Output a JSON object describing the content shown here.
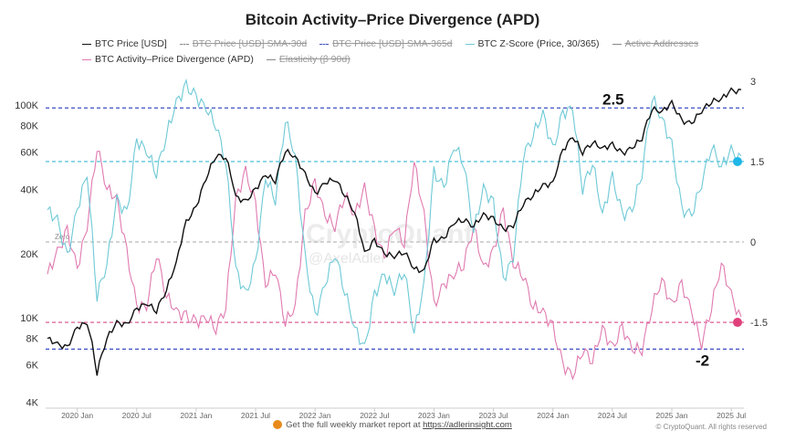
{
  "chart_data": {
    "type": "line",
    "title": "Bitcoin Activity–Price Divergence (APD)",
    "legend": [
      {
        "label": "BTC Price [USD]",
        "color": "#111111",
        "style": "solid",
        "enabled": true
      },
      {
        "label": "BTC Price [USD] SMA-30d",
        "color": "#888888",
        "style": "dash",
        "enabled": false
      },
      {
        "label": "BTC Price [USD] SMA-365d",
        "color": "#3b4fb5",
        "style": "dash",
        "enabled": false
      },
      {
        "label": "BTC Z-Score (Price, 30/365)",
        "color": "#6ec9d6",
        "style": "solid",
        "enabled": true
      },
      {
        "label": "Active Addresses",
        "color": "#888888",
        "style": "solid",
        "enabled": false
      },
      {
        "label": "BTC Activity–Price Divergence (APD)",
        "color": "#e07ab0",
        "style": "solid",
        "enabled": true
      },
      {
        "label": "Elasticity (β 90d)",
        "color": "#888888",
        "style": "solid",
        "enabled": false
      }
    ],
    "x_ticks": [
      "2020 Jan",
      "2020 Jul",
      "2021 Jan",
      "2021 Jul",
      "2022 Jan",
      "2022 Jul",
      "2023 Jan",
      "2023 Jul",
      "2024 Jan",
      "2024 Jul",
      "2025 Jan",
      "2025 Jul"
    ],
    "left_axis": {
      "scale": "log",
      "range": [
        4000,
        130000
      ],
      "ticks": [
        {
          "v": 4000,
          "l": "4K"
        },
        {
          "v": 6000,
          "l": "6K"
        },
        {
          "v": 8000,
          "l": "8K"
        },
        {
          "v": 10000,
          "l": "10K"
        },
        {
          "v": 20000,
          "l": "20K"
        },
        {
          "v": 40000,
          "l": "40K"
        },
        {
          "v": 60000,
          "l": "60K"
        },
        {
          "v": 80000,
          "l": "80K"
        },
        {
          "v": 100000,
          "l": "100K"
        }
      ]
    },
    "right_axis": {
      "range": [
        -2.95,
        3.05
      ],
      "ticks": [
        {
          "v": 3,
          "l": "3"
        },
        {
          "v": 1.5,
          "l": "1.5"
        },
        {
          "v": 0,
          "l": "0"
        },
        {
          "v": -1.5,
          "l": "-1.5"
        }
      ]
    },
    "reference_lines": [
      {
        "value": 2.5,
        "label": "2.5",
        "color": "#3b4fc4"
      },
      {
        "value": -2,
        "label": "-2",
        "color": "#3b4fc4"
      },
      {
        "value": 1.5,
        "label": "",
        "color": "#3bb8d8"
      },
      {
        "value": -1.5,
        "label": "",
        "color": "#d84a8a"
      },
      {
        "value": 0,
        "label": "Zero",
        "color": "#bbbbbb"
      }
    ],
    "x_months": [
      "2019-10",
      "2019-11",
      "2019-12",
      "2020-01",
      "2020-02",
      "2020-03",
      "2020-04",
      "2020-05",
      "2020-06",
      "2020-07",
      "2020-08",
      "2020-09",
      "2020-10",
      "2020-11",
      "2020-12",
      "2021-01",
      "2021-02",
      "2021-03",
      "2021-04",
      "2021-05",
      "2021-06",
      "2021-07",
      "2021-08",
      "2021-09",
      "2021-10",
      "2021-11",
      "2021-12",
      "2022-01",
      "2022-02",
      "2022-03",
      "2022-04",
      "2022-05",
      "2022-06",
      "2022-07",
      "2022-08",
      "2022-09",
      "2022-10",
      "2022-11",
      "2022-12",
      "2023-01",
      "2023-02",
      "2023-03",
      "2023-04",
      "2023-05",
      "2023-06",
      "2023-07",
      "2023-08",
      "2023-09",
      "2023-10",
      "2023-11",
      "2023-12",
      "2024-01",
      "2024-02",
      "2024-03",
      "2024-04",
      "2024-05",
      "2024-06",
      "2024-07",
      "2024-08",
      "2024-09",
      "2024-10",
      "2024-11",
      "2024-12",
      "2025-01",
      "2025-02",
      "2025-03",
      "2025-04",
      "2025-05",
      "2025-06",
      "2025-07",
      "2025-08"
    ],
    "series": [
      {
        "name": "BTC Price [USD]",
        "axis": "left",
        "color": "#111111",
        "values": [
          8000,
          7500,
          7200,
          9000,
          9500,
          5500,
          8000,
          9500,
          9200,
          11000,
          11700,
          10800,
          13500,
          18000,
          28000,
          33000,
          45000,
          58000,
          57000,
          37000,
          35000,
          40000,
          47000,
          44000,
          61000,
          57000,
          47000,
          38000,
          43000,
          45000,
          38000,
          31000,
          20000,
          23000,
          20000,
          19500,
          20500,
          17000,
          16500,
          23000,
          23500,
          28000,
          29000,
          27000,
          30500,
          29000,
          26000,
          27000,
          34500,
          37700,
          42000,
          42500,
          61000,
          71000,
          60000,
          67000,
          62500,
          65000,
          59000,
          63000,
          70000,
          96000,
          93000,
          102000,
          84000,
          82000,
          94000,
          104000,
          107000,
          117000,
          115000
        ]
      },
      {
        "name": "BTC Z-Score (Price, 30/365)",
        "axis": "right",
        "color": "#6ec9d6",
        "values": [
          0.6,
          0.4,
          -0.3,
          0.6,
          1.3,
          -1.0,
          -0.4,
          0.8,
          0.5,
          1.9,
          1.7,
          1.3,
          2.0,
          2.6,
          2.9,
          2.7,
          2.5,
          2.2,
          1.5,
          -0.5,
          -1.0,
          -0.4,
          1.2,
          0.8,
          2.3,
          1.6,
          -0.3,
          -1.4,
          -0.8,
          -0.2,
          -0.9,
          -1.6,
          -2.0,
          -1.0,
          -0.6,
          -0.9,
          -0.5,
          -1.7,
          -0.8,
          1.3,
          1.0,
          1.8,
          1.5,
          0.2,
          1.0,
          0.7,
          -0.7,
          -0.3,
          1.6,
          2.0,
          2.4,
          1.7,
          2.4,
          2.5,
          1.0,
          1.5,
          0.5,
          1.2,
          0.5,
          0.6,
          1.3,
          2.7,
          2.3,
          1.8,
          0.6,
          0.5,
          1.1,
          1.8,
          1.4,
          1.7,
          1.5
        ]
      },
      {
        "name": "BTC Activity–Price Divergence (APD)",
        "axis": "right",
        "color": "#e07ab0",
        "values": [
          -0.6,
          -0.2,
          0.2,
          -0.5,
          0.3,
          1.8,
          1.0,
          0.8,
          -0.2,
          -1.2,
          -1.2,
          -0.2,
          -1.0,
          -1.3,
          -1.4,
          -1.5,
          -1.4,
          -1.6,
          -1.2,
          0.8,
          1.3,
          0.7,
          -0.8,
          -0.5,
          -1.5,
          -1.2,
          0.5,
          1.1,
          0.5,
          0.3,
          0.9,
          0.5,
          1.0,
          0.2,
          -0.3,
          0.3,
          0.0,
          1.5,
          0.5,
          -1.2,
          -0.8,
          -0.6,
          -0.4,
          0.3,
          -0.5,
          -0.2,
          0.6,
          -0.4,
          -0.6,
          -1.2,
          -1.3,
          -1.6,
          -2.3,
          -2.5,
          -2.0,
          -2.2,
          -1.6,
          -2.0,
          -1.6,
          -2.0,
          -2.0,
          -1.2,
          -0.7,
          -1.2,
          -0.8,
          -1.3,
          -1.9,
          -1.2,
          -0.4,
          -1.0,
          -1.5
        ]
      }
    ],
    "end_markers": [
      {
        "series": "BTC Z-Score (Price, 30/365)",
        "value": 1.5,
        "color": "#1fb6e8"
      },
      {
        "series": "BTC Activity–Price Divergence (APD)",
        "value": -1.5,
        "color": "#e0407a"
      }
    ],
    "grid": false
  },
  "watermark": [
    "CryptoQuant",
    "@AxelAdler"
  ],
  "footer": {
    "text": "Get the full weekly market report at ",
    "link": "https://adlerinsight.com",
    "copyright": "© CryptoQuant. All rights reserved"
  }
}
